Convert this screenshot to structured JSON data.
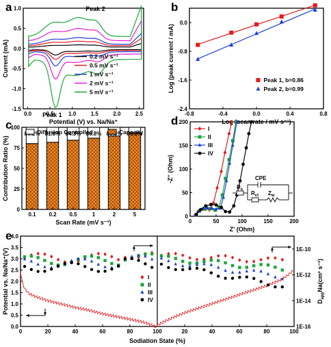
{
  "panels": [
    "a",
    "b",
    "c",
    "d",
    "e"
  ],
  "chart_data": [
    {
      "panel": "a",
      "type": "line",
      "xlabel": "Potential (V) vs. Na/Na⁺",
      "ylabel": "Current (mA)",
      "xlim": [
        -0.1,
        2.6
      ],
      "ylim": [
        -1.5,
        1.0
      ],
      "xticks": [
        "0.0",
        "0.5",
        "1.0",
        "1.5",
        "2.0",
        "2.5"
      ],
      "yticks": [
        "1.0",
        "0.5",
        "0.0",
        "-0.5",
        "-1.0",
        "-1.5"
      ],
      "annotations": [
        "Peak 2",
        "Peak 1"
      ],
      "legend_position": "bottom-right",
      "series": [
        {
          "name": "0.2 mV s⁻¹",
          "color": "#000000",
          "anodic_peak_y": 0.1,
          "cathodic_peak_y": -0.15
        },
        {
          "name": "0.5 mV s⁻¹",
          "color": "#e41a1c",
          "anodic_peak_y": 0.2,
          "cathodic_peak_y": -0.25
        },
        {
          "name": "1 mV s⁻¹",
          "color": "#1f3fd6",
          "anodic_peak_y": 0.3,
          "cathodic_peak_y": -0.4
        },
        {
          "name": "2 mV s⁻¹",
          "color": "#e61ad6",
          "anodic_peak_y": 0.55,
          "cathodic_peak_y": -0.7
        },
        {
          "name": "5 mV s⁻¹",
          "color": "#1aa63a",
          "anodic_peak_y": 0.85,
          "cathodic_peak_y": -1.35
        }
      ]
    },
    {
      "panel": "b",
      "type": "scatter",
      "xlabel": "Log (scan rate / mV s⁻¹)",
      "ylabel": "Log (peak current / mA)",
      "xlim": [
        -0.8,
        0.8
      ],
      "ylim": [
        -2.4,
        0.4
      ],
      "xticks": [
        "-0.8",
        "-0.4",
        "0.0",
        "0.4",
        "0.8"
      ],
      "yticks": [
        "0.0",
        "-0.8",
        "-1.6",
        "-2.4"
      ],
      "legend_position": "bottom-right",
      "series": [
        {
          "name": "Peak 1, b=0.86",
          "color": "#e41a1c",
          "marker": "square",
          "x": [
            -0.7,
            -0.3,
            0.0,
            0.3,
            0.7
          ],
          "y": [
            -0.62,
            -0.28,
            -0.05,
            0.17,
            0.48
          ]
        },
        {
          "name": "Peak 2, b=0.99",
          "color": "#1f3fd6",
          "marker": "triangle",
          "x": [
            -0.7,
            -0.3,
            0.0,
            0.3,
            0.7
          ],
          "y": [
            -1.02,
            -0.62,
            -0.3,
            0.02,
            0.35
          ]
        }
      ]
    },
    {
      "panel": "c",
      "type": "bar",
      "xlabel": "Scan Rate (mV s⁻¹)",
      "ylabel": "Contribution Ratio (%)",
      "ylim": [
        0,
        100
      ],
      "yticks": [
        "0",
        "25",
        "50",
        "75",
        "100"
      ],
      "categories": [
        "0.1",
        "0.2",
        "0.5",
        "1",
        "2",
        "5"
      ],
      "value_labels": [
        "80.2%",
        "81.8%",
        "84.3%",
        "86.8%",
        "89.3%",
        "93.3%"
      ],
      "legend_position": "top",
      "series": [
        {
          "name": "Capacity",
          "values": [
            80.2,
            81.8,
            84.3,
            86.8,
            89.3,
            93.3
          ],
          "color": "#f28c28"
        },
        {
          "name": "Diffusion Controlled",
          "values": [
            19.8,
            18.2,
            15.7,
            13.2,
            10.7,
            6.7
          ],
          "color": "#ffffff"
        }
      ]
    },
    {
      "panel": "d",
      "type": "scatter",
      "xlabel": "Z' (Ohm)",
      "ylabel": "-Z'' (Ohm)",
      "xlim": [
        0,
        200
      ],
      "ylim": [
        0,
        200
      ],
      "xticks": [
        "0",
        "50",
        "100",
        "150",
        "200"
      ],
      "yticks": [
        "0",
        "50",
        "100",
        "150",
        "200"
      ],
      "legend_position": "top-left",
      "circuit_labels": [
        "CPE",
        "R",
        "s",
        "R",
        "ct",
        "Z",
        "w"
      ],
      "series": [
        {
          "name": "I",
          "color": "#e41a1c",
          "marker": "diamond",
          "x": [
            10,
            15,
            20,
            25,
            30,
            37,
            45,
            52,
            60,
            67,
            75,
            80
          ],
          "y": [
            3,
            10,
            14,
            16,
            15,
            14,
            28,
            60,
            95,
            135,
            175,
            200
          ]
        },
        {
          "name": "II",
          "color": "#1aa63a",
          "marker": "square",
          "x": [
            12,
            18,
            25,
            32,
            40,
            48,
            55,
            62,
            68,
            75,
            82,
            88
          ],
          "y": [
            3,
            11,
            15,
            17,
            16,
            13,
            18,
            45,
            80,
            120,
            160,
            200
          ]
        },
        {
          "name": "III",
          "color": "#1f3fd6",
          "marker": "triangle",
          "x": [
            10,
            17,
            25,
            33,
            42,
            50,
            58,
            64,
            70,
            76,
            82,
            90
          ],
          "y": [
            3,
            11,
            16,
            18,
            17,
            15,
            17,
            40,
            75,
            112,
            150,
            200
          ]
        },
        {
          "name": "IV",
          "color": "#000000",
          "marker": "circle",
          "x": [
            12,
            20,
            30,
            40,
            50,
            60,
            68,
            76,
            84,
            90,
            96,
            102,
            108,
            113,
            118
          ],
          "y": [
            4,
            14,
            22,
            25,
            24,
            19,
            10,
            9,
            22,
            45,
            75,
            110,
            145,
            175,
            200
          ]
        }
      ]
    },
    {
      "panel": "e",
      "type": "line",
      "xlabel": "Sodiation State (%)",
      "ylabel_left": "Potential vs. Na/Na⁺(V)",
      "ylabel_right": "D",
      "ylabel_right_sub": "app",
      "ylabel_right_unit": "Na(cm² s⁻¹)",
      "xticks": [
        "0",
        "20",
        "40",
        "60",
        "80",
        "100",
        "20",
        "40",
        "60",
        "80",
        "100"
      ],
      "yticks_left": [
        "0.0",
        "0.5",
        "1.0",
        "1.5",
        "2.0",
        "2.5",
        "3.0",
        "3.5",
        "4.0"
      ],
      "yticks_right": [
        "1E-16",
        "1E-14",
        "1E-12",
        "1E-10"
      ],
      "ylim_left": [
        0,
        4.0
      ],
      "ylim_right_log10": [
        -16,
        -9
      ],
      "legend_position": "center-right",
      "series": [
        {
          "name": "I",
          "color": "#e41a1c",
          "marker": "diamond"
        },
        {
          "name": "II",
          "color": "#1aa63a",
          "marker": "square"
        },
        {
          "name": "III",
          "color": "#1f3fd6",
          "marker": "triangle"
        },
        {
          "name": "IV",
          "color": "#000000",
          "marker": "circle"
        }
      ],
      "discharge_curve": {
        "x": [
          0,
          2,
          5,
          10,
          15,
          20,
          30,
          40,
          50,
          60,
          70,
          80,
          90,
          97,
          100
        ],
        "y": [
          2.4,
          1.85,
          1.55,
          1.4,
          1.3,
          1.2,
          1.05,
          0.9,
          0.78,
          0.62,
          0.5,
          0.38,
          0.25,
          0.1,
          0.0
        ]
      },
      "charge_curve": {
        "x": [
          0,
          3,
          10,
          20,
          30,
          40,
          50,
          60,
          70,
          80,
          90,
          95,
          100
        ],
        "y": [
          0.0,
          0.1,
          0.3,
          0.55,
          0.75,
          0.95,
          1.15,
          1.35,
          1.55,
          1.75,
          2.0,
          2.2,
          2.45
        ]
      }
    }
  ]
}
